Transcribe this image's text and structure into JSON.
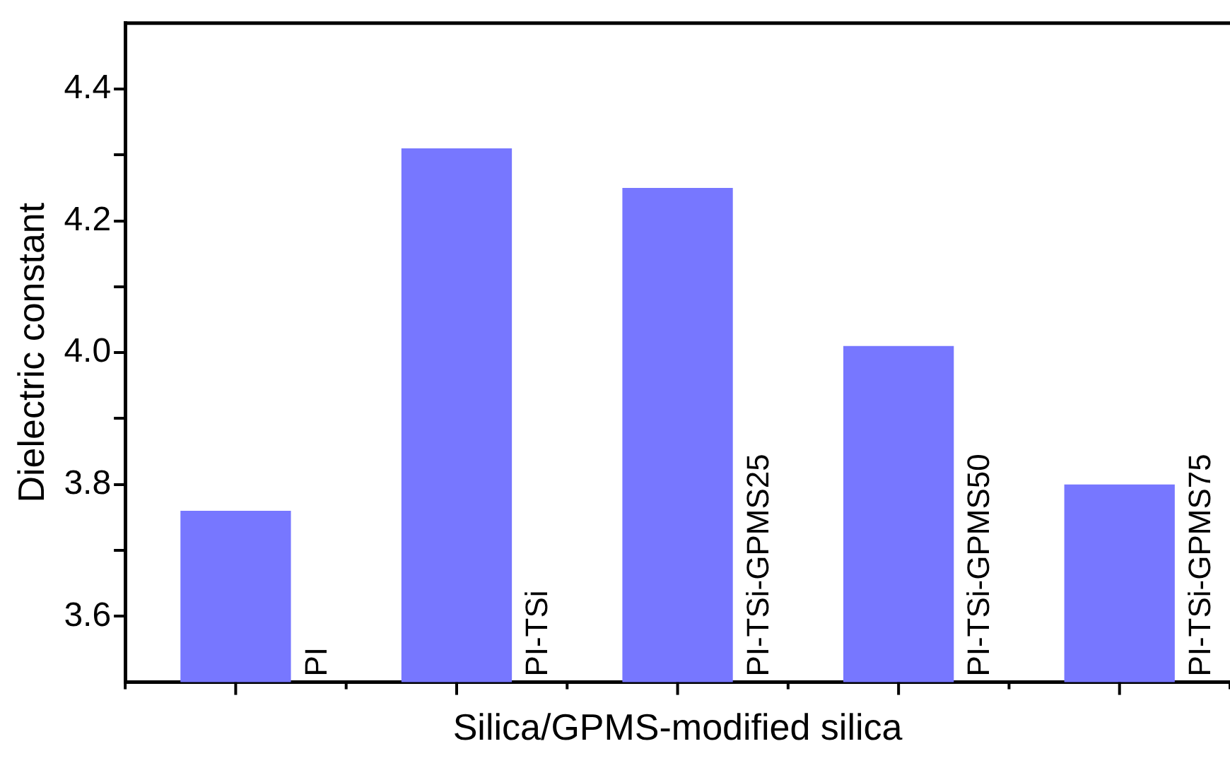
{
  "chart_data": {
    "type": "bar",
    "xlabel": "Silica/GPMS-modified silica",
    "ylabel": "Dielectric constant",
    "categories": [
      "PI",
      "PI-TSi",
      "PI-TSi-GPMS25",
      "PI-TSi-GPMS50",
      "PI-TSi-GPMS75"
    ],
    "values": [
      3.76,
      4.31,
      4.25,
      4.01,
      3.8
    ],
    "color": "#7777ff",
    "ylim": [
      3.5,
      4.5
    ],
    "yticks": [
      3.6,
      {
        "value": 3.7,
        "label": null
      },
      3.8,
      {
        "value": 3.9,
        "label": null
      },
      {
        "value": 4.0,
        "label": "4.0"
      },
      {
        "value": 4.1,
        "label": null
      },
      4.2,
      {
        "value": 4.3,
        "label": null
      },
      4.4
    ],
    "grid": false,
    "legend": false,
    "tick_labels": "y"
  }
}
